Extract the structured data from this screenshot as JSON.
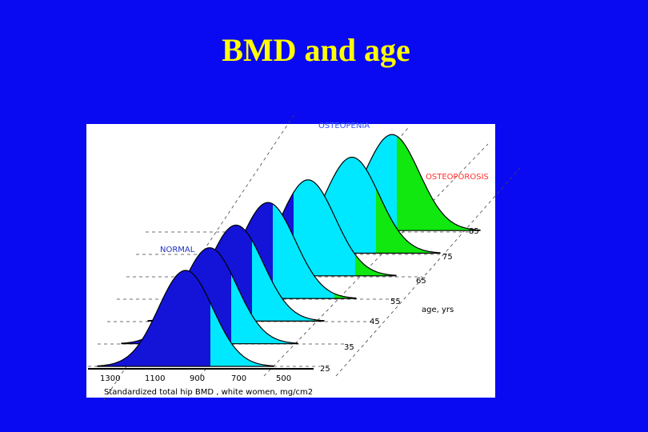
{
  "slide": {
    "title": "BMD and age",
    "figure": {
      "labels": {
        "osteopenia": "OSTEOPENIA",
        "osteoporosis": "OSTEOPOROSIS",
        "normal": "NORMAL",
        "age_axis": "age, yrs"
      },
      "ages": [
        "85",
        "75",
        "65",
        "55",
        "45",
        "35",
        "25"
      ],
      "bmd_ticks": [
        "1300",
        "1100",
        "900",
        "700",
        "500"
      ],
      "x_axis_label": "Standardized total hip BMD , white women, mg/cm2"
    }
  }
}
